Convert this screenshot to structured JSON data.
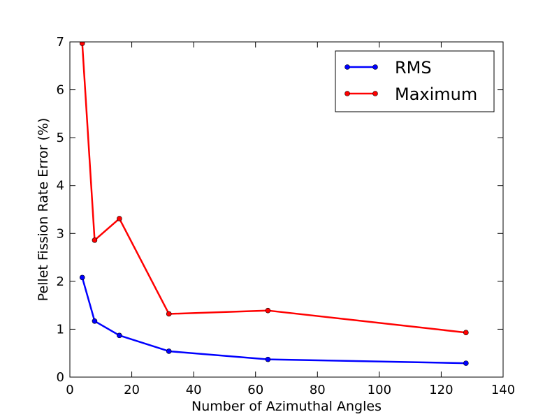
{
  "chart_data": {
    "type": "line",
    "title": "",
    "xlabel": "Number of Azimuthal Angles",
    "ylabel": "Pellet Fission Rate Error (%)",
    "xlim": [
      0,
      140
    ],
    "ylim": [
      0,
      7
    ],
    "xticks": [
      0,
      20,
      40,
      60,
      80,
      100,
      120,
      140
    ],
    "yticks": [
      0,
      1,
      2,
      3,
      4,
      5,
      6,
      7
    ],
    "grid": false,
    "legend_position": "top-right",
    "series": [
      {
        "name": "RMS",
        "color": "#0000ff",
        "marker": "circle",
        "x": [
          4,
          8,
          16,
          32,
          64,
          128
        ],
        "y": [
          2.08,
          1.17,
          0.87,
          0.54,
          0.37,
          0.29
        ]
      },
      {
        "name": "Maximum",
        "color": "#ff0000",
        "marker": "circle",
        "x": [
          4,
          8,
          16,
          32,
          64,
          128
        ],
        "y": [
          6.97,
          2.86,
          3.31,
          1.32,
          1.39,
          0.93
        ]
      }
    ]
  }
}
